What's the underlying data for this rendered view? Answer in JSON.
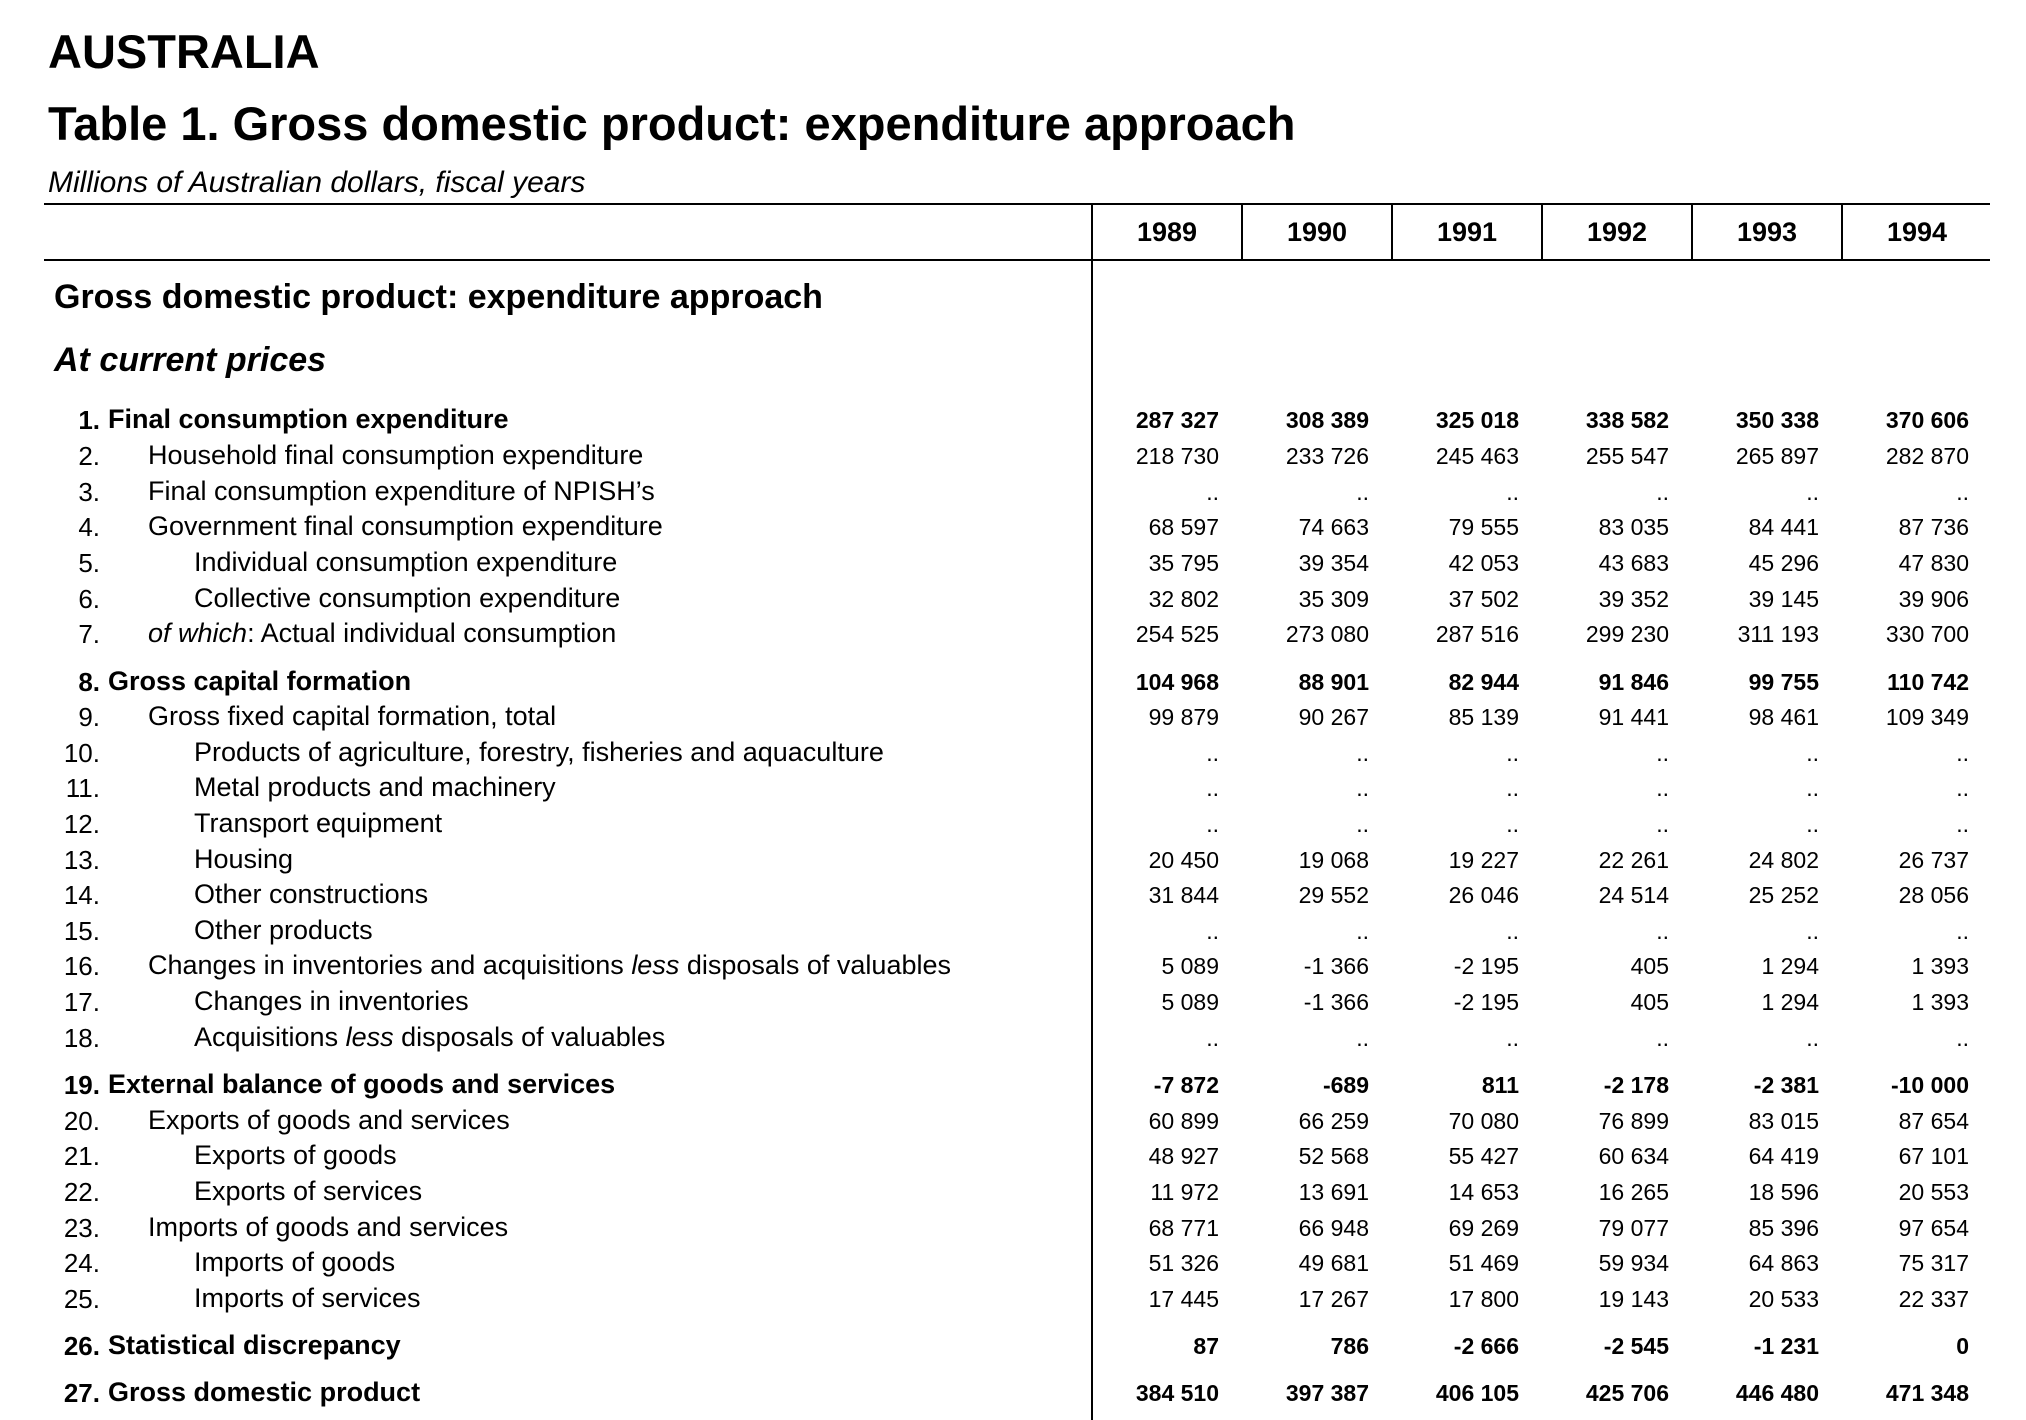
{
  "header": {
    "country": "AUSTRALIA",
    "title": "Table 1. Gross domestic product: expenditure approach",
    "subtitle": "Millions of Australian dollars,  fiscal years"
  },
  "years": [
    "1989",
    "1990",
    "1991",
    "1992",
    "1993",
    "1994"
  ],
  "section_title": "Gross domestic product: expenditure approach",
  "subsection_title": "At current prices",
  "rows": [
    {
      "num": "1.",
      "label": "Final consumption expenditure",
      "level": 0,
      "bold": true,
      "values": [
        "287 327",
        "308 389",
        "325 018",
        "338 582",
        "350 338",
        "370 606"
      ]
    },
    {
      "num": "2.",
      "label": "Household final consumption expenditure",
      "level": 1,
      "bold": false,
      "values": [
        "218 730",
        "233 726",
        "245 463",
        "255 547",
        "265 897",
        "282 870"
      ]
    },
    {
      "num": "3.",
      "label": "Final consumption expenditure of NPISH’s",
      "level": 1,
      "bold": false,
      "values": [
        "..",
        "..",
        "..",
        "..",
        "..",
        ".."
      ]
    },
    {
      "num": "4.",
      "label": "Government final consumption expenditure",
      "level": 1,
      "bold": false,
      "values": [
        "68 597",
        "74 663",
        "79 555",
        "83 035",
        "84 441",
        "87 736"
      ]
    },
    {
      "num": "5.",
      "label": "Individual consumption expenditure",
      "level": 2,
      "bold": false,
      "values": [
        "35 795",
        "39 354",
        "42 053",
        "43 683",
        "45 296",
        "47 830"
      ]
    },
    {
      "num": "6.",
      "label": "Collective consumption expenditure",
      "level": 2,
      "bold": false,
      "values": [
        "32 802",
        "35 309",
        "37 502",
        "39 352",
        "39 145",
        "39 906"
      ]
    },
    {
      "num": "7.",
      "label_italic": "of which",
      "label": ": Actual individual consumption",
      "level": 1,
      "bold": false,
      "values": [
        "254 525",
        "273 080",
        "287 516",
        "299 230",
        "311 193",
        "330 700"
      ]
    },
    {
      "num": "8.",
      "label": "Gross capital formation",
      "level": 0,
      "bold": true,
      "values": [
        "104 968",
        "88 901",
        "82 944",
        "91 846",
        "99 755",
        "110 742"
      ]
    },
    {
      "num": "9.",
      "label": "Gross fixed capital formation, total",
      "level": 1,
      "bold": false,
      "values": [
        "99 879",
        "90 267",
        "85 139",
        "91 441",
        "98 461",
        "109 349"
      ]
    },
    {
      "num": "10.",
      "label": "Products of agriculture, forestry, fisheries and aquaculture",
      "level": 2,
      "bold": false,
      "values": [
        "..",
        "..",
        "..",
        "..",
        "..",
        ".."
      ]
    },
    {
      "num": "11.",
      "label": "Metal products and machinery",
      "level": 2,
      "bold": false,
      "values": [
        "..",
        "..",
        "..",
        "..",
        "..",
        ".."
      ]
    },
    {
      "num": "12.",
      "label": "Transport equipment",
      "level": 2,
      "bold": false,
      "values": [
        "..",
        "..",
        "..",
        "..",
        "..",
        ".."
      ]
    },
    {
      "num": "13.",
      "label": "Housing",
      "level": 2,
      "bold": false,
      "values": [
        "20 450",
        "19 068",
        "19 227",
        "22 261",
        "24 802",
        "26 737"
      ]
    },
    {
      "num": "14.",
      "label": "Other constructions",
      "level": 2,
      "bold": false,
      "values": [
        "31 844",
        "29 552",
        "26 046",
        "24 514",
        "25 252",
        "28 056"
      ]
    },
    {
      "num": "15.",
      "label": "Other products",
      "level": 2,
      "bold": false,
      "values": [
        "..",
        "..",
        "..",
        "..",
        "..",
        ".."
      ]
    },
    {
      "num": "16.",
      "label": "Changes in inventories and acquisitions ",
      "label_italic2": "less",
      "label_tail": " disposals of valuables",
      "level": 1,
      "bold": false,
      "values": [
        "5 089",
        "-1 366",
        "-2 195",
        "405",
        "1 294",
        "1 393"
      ]
    },
    {
      "num": "17.",
      "label": "Changes in inventories",
      "level": 2,
      "bold": false,
      "values": [
        "5 089",
        "-1 366",
        "-2 195",
        "405",
        "1 294",
        "1 393"
      ]
    },
    {
      "num": "18.",
      "label": "Acquisitions ",
      "label_italic2": "less",
      "label_tail": " disposals of valuables",
      "level": 2,
      "bold": false,
      "values": [
        "..",
        "..",
        "..",
        "..",
        "..",
        ".."
      ]
    },
    {
      "num": "19.",
      "label": "External balance of goods and services",
      "level": 0,
      "bold": true,
      "values": [
        "-7 872",
        "-689",
        "811",
        "-2 178",
        "-2 381",
        "-10 000"
      ]
    },
    {
      "num": "20.",
      "label": "Exports of goods and services",
      "level": 1,
      "bold": false,
      "values": [
        "60 899",
        "66 259",
        "70 080",
        "76 899",
        "83 015",
        "87 654"
      ]
    },
    {
      "num": "21.",
      "label": "Exports of goods",
      "level": 2,
      "bold": false,
      "values": [
        "48 927",
        "52 568",
        "55 427",
        "60 634",
        "64 419",
        "67 101"
      ]
    },
    {
      "num": "22.",
      "label": "Exports of services",
      "level": 2,
      "bold": false,
      "values": [
        "11 972",
        "13 691",
        "14 653",
        "16 265",
        "18 596",
        "20 553"
      ]
    },
    {
      "num": "23.",
      "label": "Imports of goods and services",
      "level": 1,
      "bold": false,
      "values": [
        "68 771",
        "66 948",
        "69 269",
        "79 077",
        "85 396",
        "97 654"
      ]
    },
    {
      "num": "24.",
      "label": "Imports of goods",
      "level": 2,
      "bold": false,
      "values": [
        "51 326",
        "49 681",
        "51 469",
        "59 934",
        "64 863",
        "75 317"
      ]
    },
    {
      "num": "25.",
      "label": "Imports of services",
      "level": 2,
      "bold": false,
      "values": [
        "17 445",
        "17 267",
        "17 800",
        "19 143",
        "20 533",
        "22 337"
      ]
    },
    {
      "num": "26.",
      "label": "Statistical discrepancy",
      "level": 0,
      "bold": true,
      "values": [
        "87",
        "786",
        "-2 666",
        "-2 545",
        "-1 231",
        "0"
      ]
    },
    {
      "num": "27.",
      "label": "Gross domestic product",
      "level": 0,
      "bold": true,
      "values": [
        "384 510",
        "397 387",
        "406 105",
        "425 706",
        "446 480",
        "471 348"
      ]
    }
  ]
}
